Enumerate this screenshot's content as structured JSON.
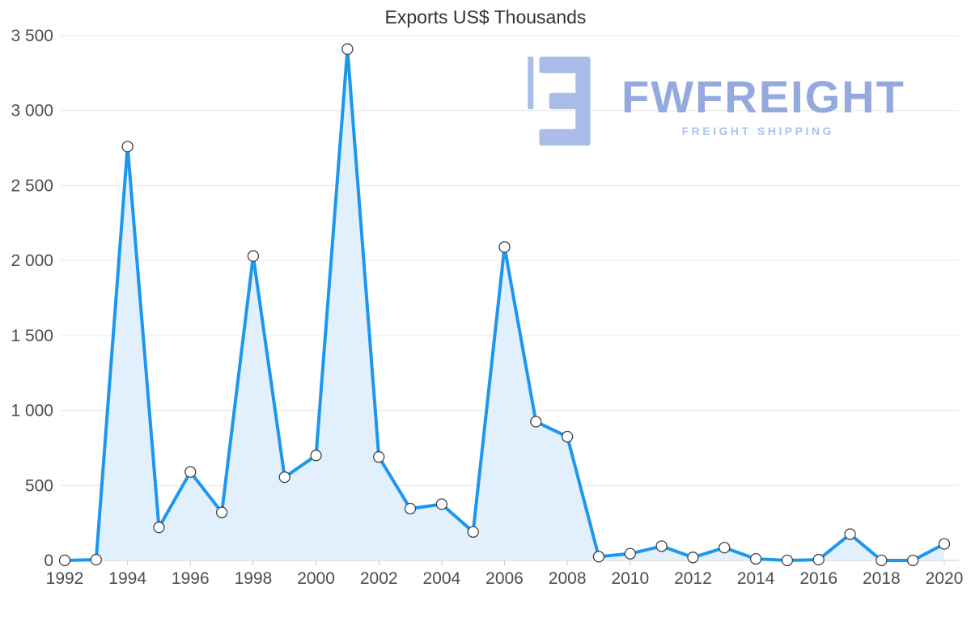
{
  "chart_data": {
    "type": "area",
    "title": "Exports US$ Thousands",
    "categories": [
      1992,
      1993,
      1994,
      1995,
      1996,
      1997,
      1998,
      1999,
      2000,
      2001,
      2002,
      2003,
      2004,
      2005,
      2006,
      2007,
      2008,
      2009,
      2010,
      2011,
      2012,
      2013,
      2014,
      2015,
      2016,
      2017,
      2018,
      2019,
      2020
    ],
    "values": [
      0,
      5,
      2760,
      220,
      590,
      320,
      2030,
      555,
      700,
      3410,
      690,
      345,
      375,
      190,
      2090,
      925,
      825,
      25,
      45,
      95,
      20,
      85,
      10,
      0,
      5,
      175,
      0,
      0,
      110
    ],
    "ylim": [
      0,
      3500
    ],
    "ytick_step": 500,
    "ytick_labels": [
      "0",
      "500",
      "1 000",
      "1 500",
      "2 000",
      "2 500",
      "3 000",
      "3 500"
    ],
    "xlabel_every": 2,
    "grid": "horizontal",
    "legend": "none",
    "line_color": "#1d97ee",
    "fill_color": "#e1f0fc",
    "grid_color": "#e6e6e6",
    "axis_line_color": "#c9c9c9",
    "tick_label_color": "#4d4d4d",
    "title_color": "#333333",
    "marker": {
      "fill": "#ffffff",
      "stroke": "#424242"
    }
  },
  "watermark": {
    "brand": "FWFREIGHT",
    "tagline": "FREIGHT SHIPPING",
    "brand_color": "#94aade",
    "tagline_color": "#a9c3ef",
    "icon_color": "#aabde9"
  }
}
